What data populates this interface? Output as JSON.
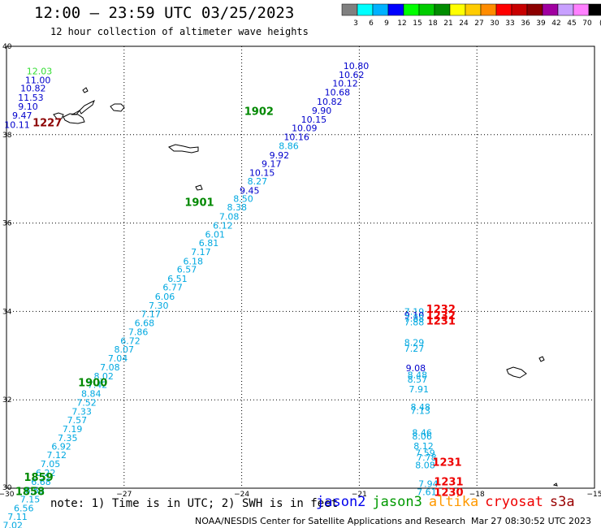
{
  "header": {
    "title": "12:00 – 23:59 UTC 03/25/2023",
    "subtitle": "12 hour collection of altimeter wave heights"
  },
  "legend": {
    "unit": "(ft)",
    "bins": [
      {
        "label": "3",
        "color": "#808080"
      },
      {
        "label": "6",
        "color": "#00ffff"
      },
      {
        "label": "9",
        "color": "#00b2ff"
      },
      {
        "label": "12",
        "color": "#0000ff"
      },
      {
        "label": "15",
        "color": "#00ff00"
      },
      {
        "label": "18",
        "color": "#00cc00"
      },
      {
        "label": "21",
        "color": "#008c00"
      },
      {
        "label": "24",
        "color": "#ffff00"
      },
      {
        "label": "27",
        "color": "#ffcc00"
      },
      {
        "label": "30",
        "color": "#ff8c00"
      },
      {
        "label": "33",
        "color": "#ff0000"
      },
      {
        "label": "36",
        "color": "#c80000"
      },
      {
        "label": "39",
        "color": "#8c0000"
      },
      {
        "label": "42",
        "color": "#a000a0"
      },
      {
        "label": "45",
        "color": "#c8a0ff"
      },
      {
        "label": "70",
        "color": "#ff80ff"
      },
      {
        "label": "",
        "color": "#000000"
      }
    ]
  },
  "chart_data": {
    "type": "scatter",
    "xlim": [
      -30,
      -15
    ],
    "ylim": [
      30,
      40
    ],
    "xticks": [
      "−30",
      "−27",
      "−24",
      "−21",
      "−18",
      "−15"
    ],
    "yticks": [
      "30",
      "32",
      "34",
      "36",
      "38",
      "40"
    ],
    "grid": true,
    "points": [
      {
        "lon": -29.16,
        "lat": 39.44,
        "text": "12.03",
        "color": "#33dd33"
      },
      {
        "lon": -29.2,
        "lat": 39.24,
        "text": "11.00",
        "color": "#0000cc"
      },
      {
        "lon": -29.32,
        "lat": 39.05,
        "text": "10.82",
        "color": "#0000cc"
      },
      {
        "lon": -29.38,
        "lat": 38.84,
        "text": "11.53",
        "color": "#0000cc"
      },
      {
        "lon": -29.45,
        "lat": 38.64,
        "text": "9.10",
        "color": "#0000cc"
      },
      {
        "lon": -29.6,
        "lat": 38.44,
        "text": "9.47",
        "color": "#0000cc"
      },
      {
        "lon": -29.73,
        "lat": 38.23,
        "text": "10.11",
        "color": "#0000cc"
      },
      {
        "lon": -21.08,
        "lat": 39.56,
        "text": "10.80",
        "color": "#0000cc"
      },
      {
        "lon": -21.2,
        "lat": 39.36,
        "text": "10.62",
        "color": "#0000cc"
      },
      {
        "lon": -21.36,
        "lat": 39.16,
        "text": "10.12",
        "color": "#0000cc"
      },
      {
        "lon": -21.56,
        "lat": 38.96,
        "text": "10.68",
        "color": "#0000cc"
      },
      {
        "lon": -21.76,
        "lat": 38.75,
        "text": "10.82",
        "color": "#0000cc"
      },
      {
        "lon": -21.96,
        "lat": 38.55,
        "text": "9.90",
        "color": "#0000cc"
      },
      {
        "lon": -22.16,
        "lat": 38.35,
        "text": "10.15",
        "color": "#0000cc"
      },
      {
        "lon": -22.4,
        "lat": 38.15,
        "text": "10.09",
        "color": "#0000cc"
      },
      {
        "lon": -22.6,
        "lat": 37.95,
        "text": "10.16",
        "color": "#0000cc"
      },
      {
        "lon": -22.8,
        "lat": 37.75,
        "text": "8.86",
        "color": "#00a8e0"
      },
      {
        "lon": -23.04,
        "lat": 37.54,
        "text": "9.92",
        "color": "#0000cc"
      },
      {
        "lon": -23.24,
        "lat": 37.34,
        "text": "9.17",
        "color": "#0000cc"
      },
      {
        "lon": -23.48,
        "lat": 37.14,
        "text": "10.15",
        "color": "#0000cc"
      },
      {
        "lon": -23.6,
        "lat": 36.95,
        "text": "8.27",
        "color": "#00a8e0"
      },
      {
        "lon": -23.8,
        "lat": 36.74,
        "text": "9.45",
        "color": "#0000cc"
      },
      {
        "lon": -23.96,
        "lat": 36.55,
        "text": "8.50",
        "color": "#00a8e0"
      },
      {
        "lon": -24.12,
        "lat": 36.36,
        "text": "8.38",
        "color": "#00a8e0"
      },
      {
        "lon": -24.32,
        "lat": 36.15,
        "text": "7.08",
        "color": "#00a8e0"
      },
      {
        "lon": -24.48,
        "lat": 35.95,
        "text": "6.12",
        "color": "#00a8e0"
      },
      {
        "lon": -24.68,
        "lat": 35.74,
        "text": "6.01",
        "color": "#00a8e0"
      },
      {
        "lon": -24.84,
        "lat": 35.55,
        "text": "6.81",
        "color": "#00a8e0"
      },
      {
        "lon": -25.04,
        "lat": 35.35,
        "text": "7.17",
        "color": "#00a8e0"
      },
      {
        "lon": -25.24,
        "lat": 35.14,
        "text": "6.18",
        "color": "#00a8e0"
      },
      {
        "lon": -25.4,
        "lat": 34.95,
        "text": "6.57",
        "color": "#00a8e0"
      },
      {
        "lon": -25.64,
        "lat": 34.74,
        "text": "6.51",
        "color": "#00a8e0"
      },
      {
        "lon": -25.76,
        "lat": 34.55,
        "text": "6.77",
        "color": "#00a8e0"
      },
      {
        "lon": -25.96,
        "lat": 34.34,
        "text": "6.06",
        "color": "#00a8e0"
      },
      {
        "lon": -26.12,
        "lat": 34.14,
        "text": "7.30",
        "color": "#00a8e0"
      },
      {
        "lon": -26.32,
        "lat": 33.94,
        "text": "7.17",
        "color": "#00a8e0"
      },
      {
        "lon": -26.48,
        "lat": 33.74,
        "text": "6.68",
        "color": "#00a8e0"
      },
      {
        "lon": -26.64,
        "lat": 33.54,
        "text": "7.86",
        "color": "#00a8e0"
      },
      {
        "lon": -26.84,
        "lat": 33.34,
        "text": "6.72",
        "color": "#00a8e0"
      },
      {
        "lon": -27.0,
        "lat": 33.14,
        "text": "8.07",
        "color": "#00a8e0"
      },
      {
        "lon": -27.16,
        "lat": 32.94,
        "text": "7.04",
        "color": "#00a8e0"
      },
      {
        "lon": -27.36,
        "lat": 32.74,
        "text": "7.08",
        "color": "#00a8e0"
      },
      {
        "lon": -27.52,
        "lat": 32.54,
        "text": "8.02",
        "color": "#00a8e0"
      },
      {
        "lon": -27.68,
        "lat": 32.34,
        "text": "7.42",
        "color": "#00a8e0"
      },
      {
        "lon": -27.84,
        "lat": 32.14,
        "text": "8.84",
        "color": "#00a8e0"
      },
      {
        "lon": -27.96,
        "lat": 31.94,
        "text": "7.52",
        "color": "#00a8e0"
      },
      {
        "lon": -28.08,
        "lat": 31.74,
        "text": "7.33",
        "color": "#00a8e0"
      },
      {
        "lon": -28.2,
        "lat": 31.54,
        "text": "7.57",
        "color": "#00a8e0"
      },
      {
        "lon": -28.32,
        "lat": 31.34,
        "text": "7.19",
        "color": "#00a8e0"
      },
      {
        "lon": -28.44,
        "lat": 31.14,
        "text": "7.35",
        "color": "#00a8e0"
      },
      {
        "lon": -28.6,
        "lat": 30.95,
        "text": "6.92",
        "color": "#00a8e0"
      },
      {
        "lon": -28.72,
        "lat": 30.75,
        "text": "7.12",
        "color": "#00a8e0"
      },
      {
        "lon": -28.88,
        "lat": 30.55,
        "text": "7.05",
        "color": "#00a8e0"
      },
      {
        "lon": -29.0,
        "lat": 30.35,
        "text": "6.22",
        "color": "#00a8e0"
      },
      {
        "lon": -29.12,
        "lat": 30.15,
        "text": "6.68",
        "color": "#00a8e0"
      },
      {
        "lon": -29.28,
        "lat": 29.95,
        "text": "6.53",
        "color": "#00a8e0"
      },
      {
        "lon": -29.4,
        "lat": 29.75,
        "text": "7.15",
        "color": "#00a8e0"
      },
      {
        "lon": -29.56,
        "lat": 29.55,
        "text": "6.56",
        "color": "#00a8e0"
      },
      {
        "lon": -29.72,
        "lat": 29.36,
        "text": "7.11",
        "color": "#00a8e0"
      },
      {
        "lon": -29.84,
        "lat": 29.16,
        "text": "7.02",
        "color": "#00a8e0"
      },
      {
        "lon": -19.6,
        "lat": 34.0,
        "text": "7.19",
        "color": "#00a8e0"
      },
      {
        "lon": -19.6,
        "lat": 33.92,
        "text": "9.10",
        "color": "#0000cc"
      },
      {
        "lon": -19.6,
        "lat": 33.84,
        "text": "7.88",
        "color": "#00a8e0"
      },
      {
        "lon": -19.6,
        "lat": 33.76,
        "text": "7.88",
        "color": "#00a8e0"
      },
      {
        "lon": -19.6,
        "lat": 33.3,
        "text": "8.29",
        "color": "#00a8e0"
      },
      {
        "lon": -19.6,
        "lat": 33.16,
        "text": "7.27",
        "color": "#00a8e0"
      },
      {
        "lon": -19.56,
        "lat": 32.72,
        "text": "9.08",
        "color": "#0000cc"
      },
      {
        "lon": -19.52,
        "lat": 32.56,
        "text": "8.48",
        "color": "#00a8e0"
      },
      {
        "lon": -19.52,
        "lat": 32.46,
        "text": "8.57",
        "color": "#00a8e0"
      },
      {
        "lon": -19.48,
        "lat": 32.24,
        "text": "7.91",
        "color": "#00a8e0"
      },
      {
        "lon": -19.44,
        "lat": 31.84,
        "text": "8.48",
        "color": "#00a8e0"
      },
      {
        "lon": -19.44,
        "lat": 31.76,
        "text": "7.13",
        "color": "#00a8e0"
      },
      {
        "lon": -19.4,
        "lat": 31.26,
        "text": "8.46",
        "color": "#00a8e0"
      },
      {
        "lon": -19.4,
        "lat": 31.18,
        "text": "8.06",
        "color": "#00a8e0"
      },
      {
        "lon": -19.36,
        "lat": 30.96,
        "text": "8.12",
        "color": "#00a8e0"
      },
      {
        "lon": -19.32,
        "lat": 30.8,
        "text": "7.59",
        "color": "#00a8e0"
      },
      {
        "lon": -19.28,
        "lat": 30.7,
        "text": "7.78",
        "color": "#00a8e0"
      },
      {
        "lon": -19.32,
        "lat": 30.52,
        "text": "8.08",
        "color": "#00a8e0"
      },
      {
        "lon": -19.24,
        "lat": 30.1,
        "text": "7.94",
        "color": "#00a8e0"
      },
      {
        "lon": -19.28,
        "lat": 29.92,
        "text": "7.61",
        "color": "#00a8e0"
      }
    ],
    "time_labels": [
      {
        "lon": -23.56,
        "lat": 38.54,
        "text": "1902",
        "color": "#008800"
      },
      {
        "lon": -25.08,
        "lat": 36.48,
        "text": "1901",
        "color": "#008800"
      },
      {
        "lon": -27.8,
        "lat": 32.4,
        "text": "1900",
        "color": "#008800"
      },
      {
        "lon": -29.18,
        "lat": 30.26,
        "text": "1859",
        "color": "#008800"
      },
      {
        "lon": -29.4,
        "lat": 29.94,
        "text": "1858",
        "color": "#008800"
      },
      {
        "lon": -28.96,
        "lat": 38.28,
        "text": "1227",
        "color": "#8c0000"
      },
      {
        "lon": -18.92,
        "lat": 34.06,
        "text": "1232",
        "color": "#ee0000"
      },
      {
        "lon": -18.92,
        "lat": 33.92,
        "text": "1232",
        "color": "#ee0000"
      },
      {
        "lon": -18.92,
        "lat": 33.8,
        "text": "1231",
        "color": "#ee0000"
      },
      {
        "lon": -18.76,
        "lat": 30.6,
        "text": "1231",
        "color": "#ee0000"
      },
      {
        "lon": -18.72,
        "lat": 30.16,
        "text": "1231",
        "color": "#ee0000"
      },
      {
        "lon": -18.72,
        "lat": 29.92,
        "text": "1230",
        "color": "#ee0000"
      }
    ]
  },
  "footer": {
    "note": "note: 1) Time is in UTC; 2) SWH is in feet",
    "satellites": [
      {
        "name": "jason2",
        "color": "#0000ee"
      },
      {
        "name": "jason3",
        "color": "#009900"
      },
      {
        "name": "altika",
        "color": "#ff9900"
      },
      {
        "name": "cryosat",
        "color": "#ee0000"
      },
      {
        "name": "s3a",
        "color": "#990000"
      }
    ],
    "credit": "NOAA/NESDIS Center for Satellite Applications and Research",
    "timestamp": "Mar 27 08:30:52 UTC 2023"
  }
}
